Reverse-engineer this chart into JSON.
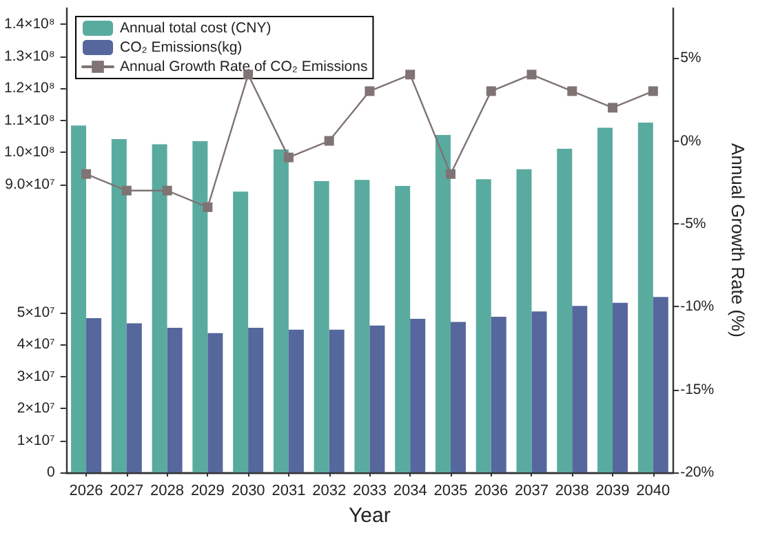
{
  "chart_data": {
    "type": "bar",
    "categories": [
      "2026",
      "2027",
      "2028",
      "2029",
      "2030",
      "2031",
      "2032",
      "2033",
      "2034",
      "2035",
      "2036",
      "2037",
      "2038",
      "2039",
      "2040"
    ],
    "xlabel": "Year",
    "ylim": [
      0,
      145000000
    ],
    "yticks": [
      {
        "value": 0,
        "label": "0"
      },
      {
        "value": 10000000,
        "label": "1×10⁷"
      },
      {
        "value": 20000000,
        "label": "2×10⁷"
      },
      {
        "value": 30000000,
        "label": "3×10⁷"
      },
      {
        "value": 40000000,
        "label": "4×10⁷"
      },
      {
        "value": 50000000,
        "label": "5×10⁷"
      },
      {
        "value": 90000000,
        "label": "9.0×10⁷"
      },
      {
        "value": 100000000,
        "label": "1.0×10⁸"
      },
      {
        "value": 110000000,
        "label": "1.1×10⁸"
      },
      {
        "value": 120000000,
        "label": "1.2×10⁸"
      },
      {
        "value": 130000000,
        "label": "1.3×10⁸"
      },
      {
        "value": 140000000,
        "label": "1.4×10⁸"
      }
    ],
    "y2lim": [
      -20,
      8
    ],
    "y2ticks": [
      {
        "value": -20,
        "label": "-20%"
      },
      {
        "value": -15,
        "label": "-15%"
      },
      {
        "value": -10,
        "label": "-10%"
      },
      {
        "value": -5,
        "label": "-5%"
      },
      {
        "value": 0,
        "label": "0%"
      },
      {
        "value": 5,
        "label": "5%"
      }
    ],
    "y2label": "Annual Growth Rate (%)",
    "legend": "top left",
    "marker": "square",
    "line_style": "solid",
    "series": [
      {
        "name": "Annual total cost (CNY)",
        "color": "#5aab9f",
        "values": [
          108400000,
          104100000,
          102500000,
          103500000,
          87700000,
          100900000,
          91000000,
          91400000,
          89500000,
          105400000,
          91600000,
          94700000,
          101100000,
          107700000,
          109300000
        ]
      },
      {
        "name": "CO₂ Emissions(kg)",
        "color": "#55679c",
        "values": [
          48200000,
          46600000,
          45200000,
          43500000,
          45200000,
          44600000,
          44600000,
          45900000,
          48000000,
          47000000,
          48600000,
          50300000,
          52000000,
          53000000,
          54800000
        ]
      },
      {
        "type": "line",
        "axis": "y2",
        "name": "Annual Growth Rate of CO₂ Emissions",
        "color": "#7f7374",
        "values": [
          -2,
          -3,
          -3,
          -4,
          4,
          -1,
          0,
          3,
          4,
          -2,
          3,
          4,
          3,
          2,
          3
        ]
      }
    ]
  }
}
